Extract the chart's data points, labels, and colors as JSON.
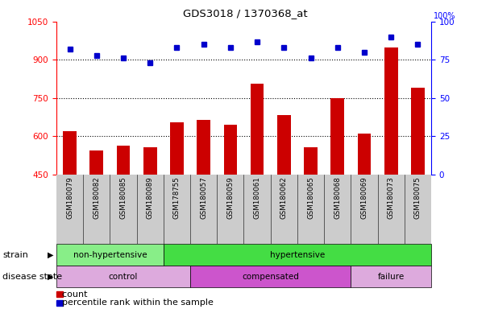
{
  "title": "GDS3018 / 1370368_at",
  "samples": [
    "GSM180079",
    "GSM180082",
    "GSM180085",
    "GSM180089",
    "GSM178755",
    "GSM180057",
    "GSM180059",
    "GSM180061",
    "GSM180062",
    "GSM180065",
    "GSM180068",
    "GSM180069",
    "GSM180073",
    "GSM180075"
  ],
  "count_values": [
    620,
    545,
    565,
    558,
    655,
    665,
    645,
    805,
    685,
    558,
    750,
    610,
    950,
    790
  ],
  "percentile_values": [
    82,
    78,
    76,
    73,
    83,
    85,
    83,
    87,
    83,
    76,
    83,
    80,
    90,
    85
  ],
  "ylim_left": [
    450,
    1050
  ],
  "ylim_right": [
    0,
    100
  ],
  "yticks_left": [
    450,
    600,
    750,
    900,
    1050
  ],
  "yticks_right": [
    0,
    25,
    50,
    75,
    100
  ],
  "bar_color": "#cc0000",
  "dot_color": "#0000cc",
  "grid_lines": [
    600,
    750,
    900
  ],
  "strain_groups": [
    {
      "label": "non-hypertensive",
      "start": 0,
      "end": 4,
      "color": "#88ee88"
    },
    {
      "label": "hypertensive",
      "start": 4,
      "end": 14,
      "color": "#44dd44"
    }
  ],
  "disease_groups": [
    {
      "label": "control",
      "start": 0,
      "end": 5,
      "color": "#ddaadd"
    },
    {
      "label": "compensated",
      "start": 5,
      "end": 11,
      "color": "#cc55cc"
    },
    {
      "label": "failure",
      "start": 11,
      "end": 14,
      "color": "#ddaadd"
    }
  ],
  "legend_count_label": "count",
  "legend_pct_label": "percentile rank within the sample",
  "strain_label": "strain",
  "disease_label": "disease state",
  "background_color": "#ffffff",
  "tick_bg_color": "#cccccc",
  "n_samples": 14
}
